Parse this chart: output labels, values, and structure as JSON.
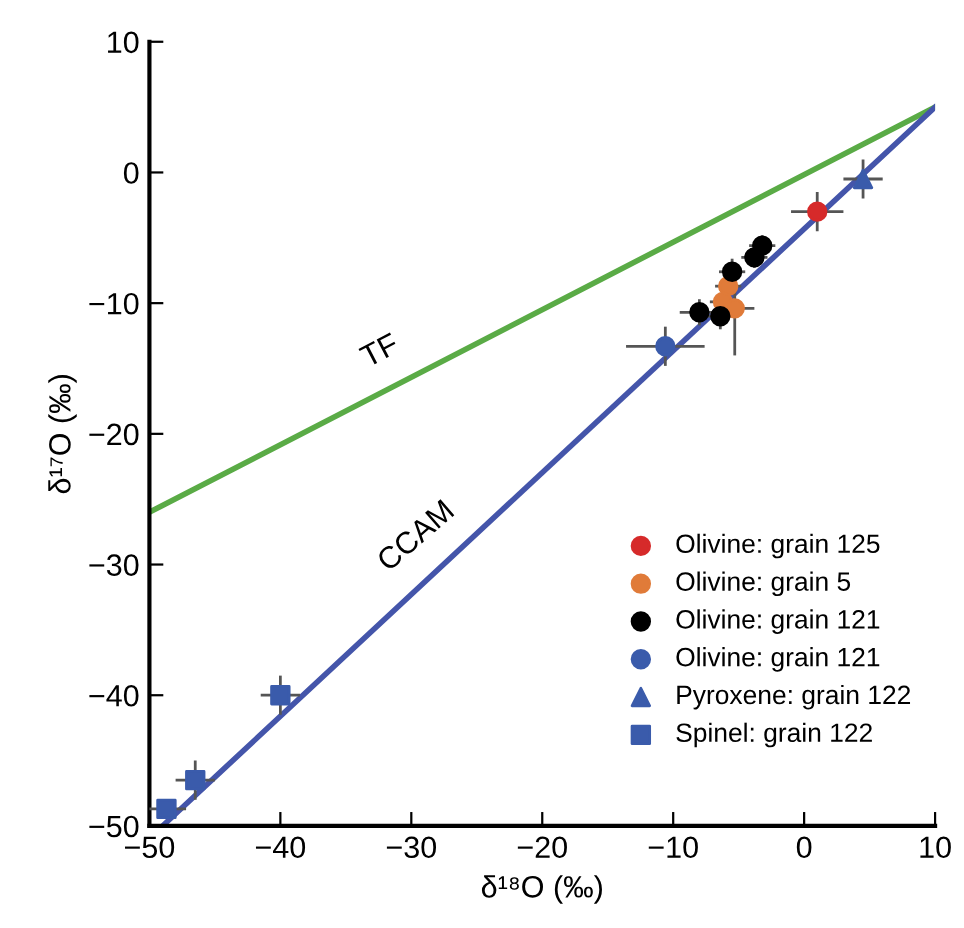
{
  "chart_data": {
    "type": "scatter",
    "xlabel": "δ¹⁸O (‰)",
    "ylabel": "δ¹⁷O (‰)",
    "xlim": [
      -50,
      10
    ],
    "ylim": [
      -50,
      10
    ],
    "xticks": [
      -50,
      -40,
      -30,
      -20,
      -10,
      0,
      10
    ],
    "yticks": [
      -50,
      -40,
      -30,
      -20,
      -10,
      0,
      10
    ],
    "grid": false,
    "legend": "bottom right",
    "series": [
      {
        "type": "line",
        "color": "#5aab46",
        "x": [
          -50,
          10
        ],
        "values": [
          -26,
          5
        ],
        "marker": "none"
      },
      {
        "type": "line",
        "color": "#4455aa",
        "x": [
          -49,
          10
        ],
        "values": [
          -50,
          5
        ],
        "marker": "none"
      },
      {
        "name": "Olivine: grain 125",
        "color": "#d62a2a",
        "marker": "circle",
        "x": [
          1
        ],
        "values": [
          -3
        ],
        "errors": [
          1.5
        ],
        "xerrors": [
          2
        ]
      },
      {
        "name": "Olivine: grain 5",
        "color": "#e07b39",
        "marker": "circle",
        "x": [
          -5.8,
          -6.2,
          -5.3
        ],
        "values": [
          -8.7,
          -9.9,
          -10.4
        ],
        "errors": [
          1,
          1,
          [
            -14,
            -9
          ]
        ],
        "xerrors": [
          1,
          1,
          1.5
        ]
      },
      {
        "name": "Olivine: grain 121",
        "color": "#000000",
        "marker": "circle",
        "x": [
          -3.2,
          -3.8,
          -5.5,
          -8,
          -6.4
        ],
        "values": [
          -5.6,
          -6.5,
          -7.6,
          -10.7,
          -11
        ],
        "errors": [
          0.8,
          0.8,
          1,
          1,
          1
        ],
        "xerrors": [
          1,
          1,
          1,
          1.5,
          1
        ]
      },
      {
        "name": "Olivine: grain 121",
        "color": "#3a5bab",
        "marker": "circle",
        "x": [
          -10.6
        ],
        "values": [
          -13.3
        ],
        "errors": [
          1.5
        ],
        "xerrors": [
          3
        ]
      },
      {
        "name": "Pyroxene: grain 122",
        "color": "#3a5bab",
        "marker": "triangle",
        "x": [
          4.5
        ],
        "values": [
          -0.5
        ],
        "errors": [
          1.5
        ],
        "xerrors": [
          1.5
        ]
      },
      {
        "name": "Spinel: grain 122",
        "color": "#3a5bab",
        "marker": "square",
        "x": [
          -40,
          -46.5,
          -48.7
        ],
        "values": [
          -40,
          -46.5,
          -48.7
        ],
        "errors": [
          1.5,
          1.5,
          null
        ],
        "xerrors": [
          1.5,
          1.5,
          1.5
        ]
      }
    ],
    "annotations": [
      {
        "text": "TF",
        "x": -31,
        "y": -16
      },
      {
        "text": "CCAM",
        "x": -28,
        "y": -30
      }
    ]
  }
}
